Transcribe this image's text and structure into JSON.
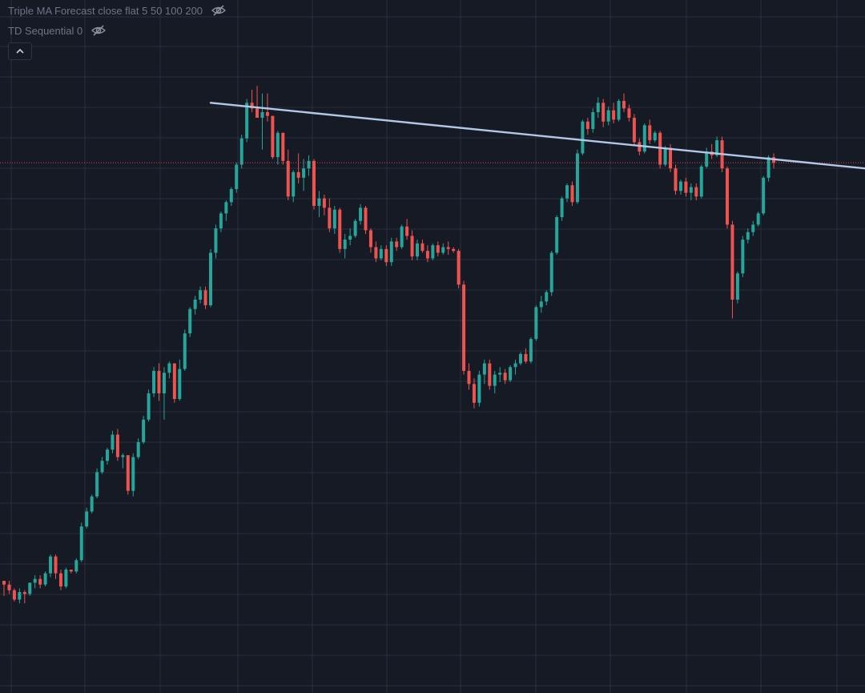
{
  "legend": {
    "indicators": [
      {
        "label": "Triple MA Forecast close flat 5 50 100 200",
        "visibility_icon": "eye-off-icon"
      },
      {
        "label": "TD Sequential 0",
        "visibility_icon": "eye-off-icon"
      }
    ],
    "collapse_icon": "chevron-up-icon"
  },
  "colors": {
    "background": "#161a25",
    "grid": "#2a2f3d",
    "up": "#26a69a",
    "down": "#ef5350",
    "trendline": "#b2c8e6",
    "price_line": "#ef5350"
  },
  "chart_data": {
    "type": "candlestick",
    "title": "",
    "xlabel": "",
    "ylabel": "",
    "grid": true,
    "y_scale": "unlabeled",
    "candles": [
      [
        100,
        100,
        92,
        98
      ],
      [
        98,
        100,
        93,
        95
      ],
      [
        95,
        96,
        89,
        90
      ],
      [
        90,
        96,
        88,
        94
      ],
      [
        94,
        95,
        88,
        93
      ],
      [
        93,
        99,
        92,
        99
      ],
      [
        99,
        103,
        96,
        101
      ],
      [
        101,
        103,
        96,
        98
      ],
      [
        98,
        105,
        97,
        104
      ],
      [
        104,
        114,
        102,
        113
      ],
      [
        113,
        114,
        101,
        104
      ],
      [
        104,
        106,
        95,
        97
      ],
      [
        97,
        107,
        96,
        106
      ],
      [
        106,
        106,
        104,
        105
      ],
      [
        105,
        112,
        104,
        111
      ],
      [
        111,
        131,
        110,
        129
      ],
      [
        129,
        139,
        128,
        137
      ],
      [
        137,
        146,
        136,
        145
      ],
      [
        145,
        160,
        144,
        158
      ],
      [
        158,
        166,
        157,
        164
      ],
      [
        164,
        171,
        162,
        170
      ],
      [
        170,
        180,
        168,
        178
      ],
      [
        178,
        181,
        164,
        166
      ],
      [
        166,
        168,
        160,
        167
      ],
      [
        167,
        167,
        146,
        148
      ],
      [
        148,
        168,
        145,
        166
      ],
      [
        166,
        176,
        165,
        174
      ],
      [
        174,
        188,
        173,
        186
      ],
      [
        186,
        202,
        185,
        200
      ],
      [
        200,
        214,
        198,
        212
      ],
      [
        212,
        216,
        196,
        200
      ],
      [
        200,
        214,
        186,
        211
      ],
      [
        211,
        217,
        208,
        216
      ],
      [
        216,
        216,
        195,
        197
      ],
      [
        197,
        218,
        196,
        213
      ],
      [
        213,
        234,
        212,
        232
      ],
      [
        232,
        246,
        230,
        245
      ],
      [
        245,
        252,
        242,
        250
      ],
      [
        250,
        257,
        248,
        255
      ],
      [
        255,
        257,
        245,
        247
      ],
      [
        247,
        277,
        246,
        275
      ],
      [
        275,
        290,
        272,
        288
      ],
      [
        288,
        297,
        286,
        296
      ],
      [
        296,
        303,
        292,
        302
      ],
      [
        302,
        310,
        300,
        309
      ],
      [
        309,
        323,
        307,
        322
      ],
      [
        322,
        338,
        320,
        336
      ],
      [
        336,
        357,
        334,
        355
      ],
      [
        355,
        362,
        350,
        352
      ],
      [
        352,
        364,
        348,
        347
      ],
      [
        347,
        360,
        330,
        350
      ],
      [
        350,
        360,
        345,
        348
      ],
      [
        348,
        348,
        325,
        326
      ],
      [
        326,
        340,
        322,
        339
      ],
      [
        339,
        339,
        322,
        324
      ],
      [
        324,
        330,
        303,
        305
      ],
      [
        305,
        319,
        302,
        318
      ],
      [
        318,
        328,
        312,
        315
      ],
      [
        315,
        325,
        308,
        320
      ],
      [
        320,
        327,
        316,
        324
      ],
      [
        324,
        325,
        298,
        300
      ],
      [
        300,
        308,
        294,
        304
      ],
      [
        304,
        306,
        295,
        299
      ],
      [
        299,
        304,
        286,
        288
      ],
      [
        288,
        300,
        285,
        298
      ],
      [
        298,
        299,
        275,
        277
      ],
      [
        277,
        285,
        272,
        282
      ],
      [
        282,
        288,
        279,
        284
      ],
      [
        284,
        293,
        283,
        292
      ],
      [
        292,
        301,
        290,
        299
      ],
      [
        299,
        300,
        285,
        287
      ],
      [
        287,
        288,
        275,
        278
      ],
      [
        278,
        281,
        270,
        272
      ],
      [
        272,
        279,
        271,
        277
      ],
      [
        277,
        279,
        268,
        270
      ],
      [
        270,
        283,
        268,
        281
      ],
      [
        281,
        283,
        276,
        278
      ],
      [
        278,
        290,
        277,
        289
      ],
      [
        289,
        293,
        282,
        284
      ],
      [
        284,
        287,
        271,
        273
      ],
      [
        273,
        282,
        271,
        280
      ],
      [
        280,
        282,
        275,
        276
      ],
      [
        276,
        279,
        270,
        272
      ],
      [
        272,
        280,
        271,
        279
      ],
      [
        279,
        281,
        273,
        275
      ],
      [
        275,
        280,
        274,
        278
      ],
      [
        278,
        281,
        274,
        277
      ],
      [
        277,
        278,
        275,
        276
      ],
      [
        276,
        277,
        256,
        258
      ],
      [
        258,
        260,
        210,
        212
      ],
      [
        212,
        216,
        202,
        205
      ],
      [
        205,
        208,
        192,
        195
      ],
      [
        195,
        212,
        193,
        210
      ],
      [
        210,
        218,
        205,
        216
      ],
      [
        216,
        218,
        202,
        204
      ],
      [
        204,
        212,
        200,
        210
      ],
      [
        210,
        214,
        206,
        211
      ],
      [
        211,
        213,
        205,
        207
      ],
      [
        207,
        215,
        206,
        214
      ],
      [
        214,
        218,
        210,
        216
      ],
      [
        216,
        222,
        215,
        221
      ],
      [
        221,
        224,
        216,
        217
      ],
      [
        217,
        230,
        216,
        229
      ],
      [
        229,
        247,
        228,
        246
      ],
      [
        246,
        252,
        243,
        249
      ],
      [
        249,
        255,
        247,
        254
      ],
      [
        254,
        276,
        252,
        275
      ],
      [
        275,
        295,
        274,
        294
      ],
      [
        294,
        305,
        292,
        304
      ],
      [
        304,
        312,
        302,
        311
      ],
      [
        311,
        313,
        300,
        302
      ],
      [
        302,
        330,
        301,
        328
      ],
      [
        328,
        346,
        327,
        345
      ],
      [
        345,
        347,
        338,
        341
      ],
      [
        341,
        352,
        339,
        350
      ],
      [
        350,
        358,
        347,
        355
      ],
      [
        355,
        357,
        342,
        345
      ],
      [
        345,
        353,
        343,
        351
      ],
      [
        351,
        355,
        344,
        346
      ],
      [
        346,
        357,
        345,
        356
      ],
      [
        356,
        360,
        350,
        352
      ],
      [
        352,
        354,
        345,
        347
      ],
      [
        347,
        349,
        332,
        334
      ],
      [
        334,
        336,
        327,
        329
      ],
      [
        329,
        344,
        328,
        343
      ],
      [
        343,
        346,
        333,
        335
      ],
      [
        335,
        340,
        334,
        339
      ],
      [
        339,
        340,
        320,
        322
      ],
      [
        322,
        332,
        321,
        331
      ],
      [
        331,
        333,
        318,
        320
      ],
      [
        320,
        322,
        306,
        308
      ],
      [
        308,
        314,
        306,
        313
      ],
      [
        313,
        315,
        305,
        307
      ],
      [
        307,
        312,
        303,
        310
      ],
      [
        310,
        312,
        303,
        305
      ],
      [
        305,
        322,
        304,
        321
      ],
      [
        321,
        331,
        320,
        329
      ],
      [
        329,
        333,
        325,
        327
      ],
      [
        327,
        337,
        326,
        335
      ],
      [
        335,
        337,
        318,
        320
      ],
      [
        320,
        321,
        288,
        290
      ],
      [
        290,
        292,
        240,
        250
      ],
      [
        250,
        265,
        248,
        264
      ],
      [
        264,
        284,
        262,
        282
      ],
      [
        282,
        288,
        280,
        286
      ],
      [
        286,
        292,
        284,
        290
      ],
      [
        290,
        297,
        289,
        296
      ],
      [
        296,
        316,
        295,
        315
      ],
      [
        315,
        327,
        313,
        326
      ],
      [
        326,
        328,
        320,
        323
      ]
    ],
    "trendline": {
      "from_candle": 40,
      "from_price": 355,
      "to_candle": 192,
      "to_price": 313
    },
    "last_price_line": 323
  }
}
